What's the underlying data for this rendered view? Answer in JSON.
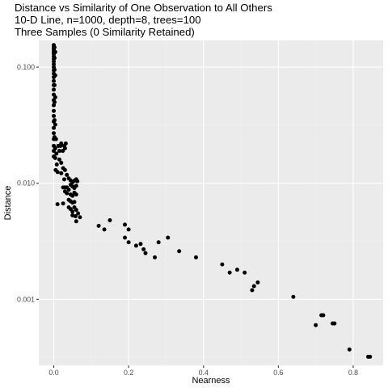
{
  "chart_data": {
    "type": "scatter",
    "title": [
      "Distance vs Similarity of One Observation to All Others",
      "10-D Line, n=1000, depth=8, trees=100",
      "Three Samples (0 Similarity Retained)"
    ],
    "xlabel": "Nearness",
    "ylabel": "Distance",
    "xlim": [
      -0.04,
      0.88
    ],
    "ylim": [
      0.00027,
      0.17
    ],
    "y_scale": "log10",
    "grid": true,
    "legend": "none",
    "x_ticks": [
      0.0,
      0.2,
      0.4,
      0.6,
      0.8
    ],
    "x_tick_labels": [
      "0.0",
      "0.2",
      "0.4",
      "0.6",
      "0.8"
    ],
    "y_ticks": [
      0.001,
      0.01,
      0.1
    ],
    "y_tick_labels": [
      "0.001",
      "0.010",
      "0.100"
    ],
    "points": [
      {
        "x": 0.0,
        "y": 0.155
      },
      {
        "x": 0.0,
        "y": 0.15
      },
      {
        "x": 0.0,
        "y": 0.145
      },
      {
        "x": 0.0,
        "y": 0.14
      },
      {
        "x": 0.0,
        "y": 0.135
      },
      {
        "x": 0.0,
        "y": 0.13
      },
      {
        "x": 0.0,
        "y": 0.124
      },
      {
        "x": 0.0,
        "y": 0.118
      },
      {
        "x": 0.0,
        "y": 0.112
      },
      {
        "x": 0.0,
        "y": 0.106
      },
      {
        "x": 0.0,
        "y": 0.1
      },
      {
        "x": 0.0,
        "y": 0.094
      },
      {
        "x": 0.0,
        "y": 0.088
      },
      {
        "x": 0.0,
        "y": 0.082
      },
      {
        "x": 0.0,
        "y": 0.076
      },
      {
        "x": 0.0,
        "y": 0.07
      },
      {
        "x": 0.0,
        "y": 0.064
      },
      {
        "x": 0.0,
        "y": 0.058
      },
      {
        "x": 0.0,
        "y": 0.052
      },
      {
        "x": 0.0,
        "y": 0.047
      },
      {
        "x": 0.0,
        "y": 0.042
      },
      {
        "x": 0.0,
        "y": 0.038
      },
      {
        "x": 0.0,
        "y": 0.034
      },
      {
        "x": 0.0,
        "y": 0.03
      },
      {
        "x": 0.0,
        "y": 0.027
      },
      {
        "x": 0.0,
        "y": 0.024
      },
      {
        "x": 0.0,
        "y": 0.021
      },
      {
        "x": 0.0,
        "y": 0.019
      },
      {
        "x": 0.0,
        "y": 0.017
      },
      {
        "x": 0.002,
        "y": 0.148
      },
      {
        "x": 0.002,
        "y": 0.12
      },
      {
        "x": 0.002,
        "y": 0.095
      },
      {
        "x": 0.002,
        "y": 0.07
      },
      {
        "x": 0.002,
        "y": 0.05
      },
      {
        "x": 0.002,
        "y": 0.035
      },
      {
        "x": 0.002,
        "y": 0.025
      },
      {
        "x": 0.004,
        "y": 0.135
      },
      {
        "x": 0.004,
        "y": 0.085
      },
      {
        "x": 0.004,
        "y": 0.055
      },
      {
        "x": 0.004,
        "y": 0.032
      },
      {
        "x": 0.004,
        "y": 0.02
      },
      {
        "x": 0.004,
        "y": 0.0165
      },
      {
        "x": 0.006,
        "y": 0.024
      },
      {
        "x": 0.007,
        "y": 0.018
      },
      {
        "x": 0.008,
        "y": 0.0145
      },
      {
        "x": 0.005,
        "y": 0.013
      },
      {
        "x": 0.01,
        "y": 0.0125
      },
      {
        "x": 0.012,
        "y": 0.021
      },
      {
        "x": 0.015,
        "y": 0.019
      },
      {
        "x": 0.018,
        "y": 0.021
      },
      {
        "x": 0.02,
        "y": 0.022
      },
      {
        "x": 0.024,
        "y": 0.019
      },
      {
        "x": 0.028,
        "y": 0.021
      },
      {
        "x": 0.03,
        "y": 0.02
      },
      {
        "x": 0.032,
        "y": 0.022
      },
      {
        "x": 0.015,
        "y": 0.016
      },
      {
        "x": 0.02,
        "y": 0.015
      },
      {
        "x": 0.025,
        "y": 0.0135
      },
      {
        "x": 0.02,
        "y": 0.0122
      },
      {
        "x": 0.03,
        "y": 0.013
      },
      {
        "x": 0.035,
        "y": 0.0118
      },
      {
        "x": 0.028,
        "y": 0.0108
      },
      {
        "x": 0.04,
        "y": 0.011
      },
      {
        "x": 0.045,
        "y": 0.0106
      },
      {
        "x": 0.05,
        "y": 0.0102
      },
      {
        "x": 0.055,
        "y": 0.0105
      },
      {
        "x": 0.06,
        "y": 0.0108
      },
      {
        "x": 0.063,
        "y": 0.0104
      },
      {
        "x": 0.045,
        "y": 0.0097
      },
      {
        "x": 0.05,
        "y": 0.0094
      },
      {
        "x": 0.055,
        "y": 0.0091
      },
      {
        "x": 0.06,
        "y": 0.0095
      },
      {
        "x": 0.025,
        "y": 0.0092
      },
      {
        "x": 0.03,
        "y": 0.0092
      },
      {
        "x": 0.035,
        "y": 0.0092
      },
      {
        "x": 0.04,
        "y": 0.0088
      },
      {
        "x": 0.03,
        "y": 0.0085
      },
      {
        "x": 0.035,
        "y": 0.0082
      },
      {
        "x": 0.045,
        "y": 0.008
      },
      {
        "x": 0.05,
        "y": 0.0078
      },
      {
        "x": 0.055,
        "y": 0.0083
      },
      {
        "x": 0.06,
        "y": 0.008
      },
      {
        "x": 0.04,
        "y": 0.0072
      },
      {
        "x": 0.045,
        "y": 0.007
      },
      {
        "x": 0.05,
        "y": 0.0068
      },
      {
        "x": 0.055,
        "y": 0.0069
      },
      {
        "x": 0.01,
        "y": 0.0066
      },
      {
        "x": 0.025,
        "y": 0.0067
      },
      {
        "x": 0.04,
        "y": 0.0062
      },
      {
        "x": 0.045,
        "y": 0.006
      },
      {
        "x": 0.05,
        "y": 0.0057
      },
      {
        "x": 0.055,
        "y": 0.0062
      },
      {
        "x": 0.06,
        "y": 0.0059
      },
      {
        "x": 0.065,
        "y": 0.0055
      },
      {
        "x": 0.05,
        "y": 0.0053
      },
      {
        "x": 0.058,
        "y": 0.0052
      },
      {
        "x": 0.07,
        "y": 0.0051
      },
      {
        "x": 0.06,
        "y": 0.0047
      },
      {
        "x": 0.12,
        "y": 0.0043
      },
      {
        "x": 0.135,
        "y": 0.004
      },
      {
        "x": 0.15,
        "y": 0.0048
      },
      {
        "x": 0.19,
        "y": 0.0044
      },
      {
        "x": 0.2,
        "y": 0.004
      },
      {
        "x": 0.19,
        "y": 0.0034
      },
      {
        "x": 0.2,
        "y": 0.0031
      },
      {
        "x": 0.22,
        "y": 0.0029
      },
      {
        "x": 0.232,
        "y": 0.003
      },
      {
        "x": 0.24,
        "y": 0.0027
      },
      {
        "x": 0.245,
        "y": 0.0025
      },
      {
        "x": 0.27,
        "y": 0.0023
      },
      {
        "x": 0.28,
        "y": 0.0031
      },
      {
        "x": 0.305,
        "y": 0.0034
      },
      {
        "x": 0.335,
        "y": 0.0026
      },
      {
        "x": 0.38,
        "y": 0.0023
      },
      {
        "x": 0.45,
        "y": 0.002
      },
      {
        "x": 0.47,
        "y": 0.0017
      },
      {
        "x": 0.49,
        "y": 0.0018
      },
      {
        "x": 0.51,
        "y": 0.0017
      },
      {
        "x": 0.53,
        "y": 0.0012
      },
      {
        "x": 0.535,
        "y": 0.0013
      },
      {
        "x": 0.545,
        "y": 0.0014
      },
      {
        "x": 0.64,
        "y": 0.00105
      },
      {
        "x": 0.7,
        "y": 0.0006
      },
      {
        "x": 0.715,
        "y": 0.00073
      },
      {
        "x": 0.72,
        "y": 0.00073
      },
      {
        "x": 0.745,
        "y": 0.00062
      },
      {
        "x": 0.75,
        "y": 0.00062
      },
      {
        "x": 0.79,
        "y": 0.00037
      },
      {
        "x": 0.84,
        "y": 0.00032
      },
      {
        "x": 0.845,
        "y": 0.00032
      }
    ]
  },
  "colors": {
    "panel_background": "#ebebeb",
    "grid_major": "#ffffff",
    "grid_minor": "#f2f2f2",
    "point": "#000000",
    "tick_label": "#4d4d4d",
    "axis_tick": "#333333"
  }
}
